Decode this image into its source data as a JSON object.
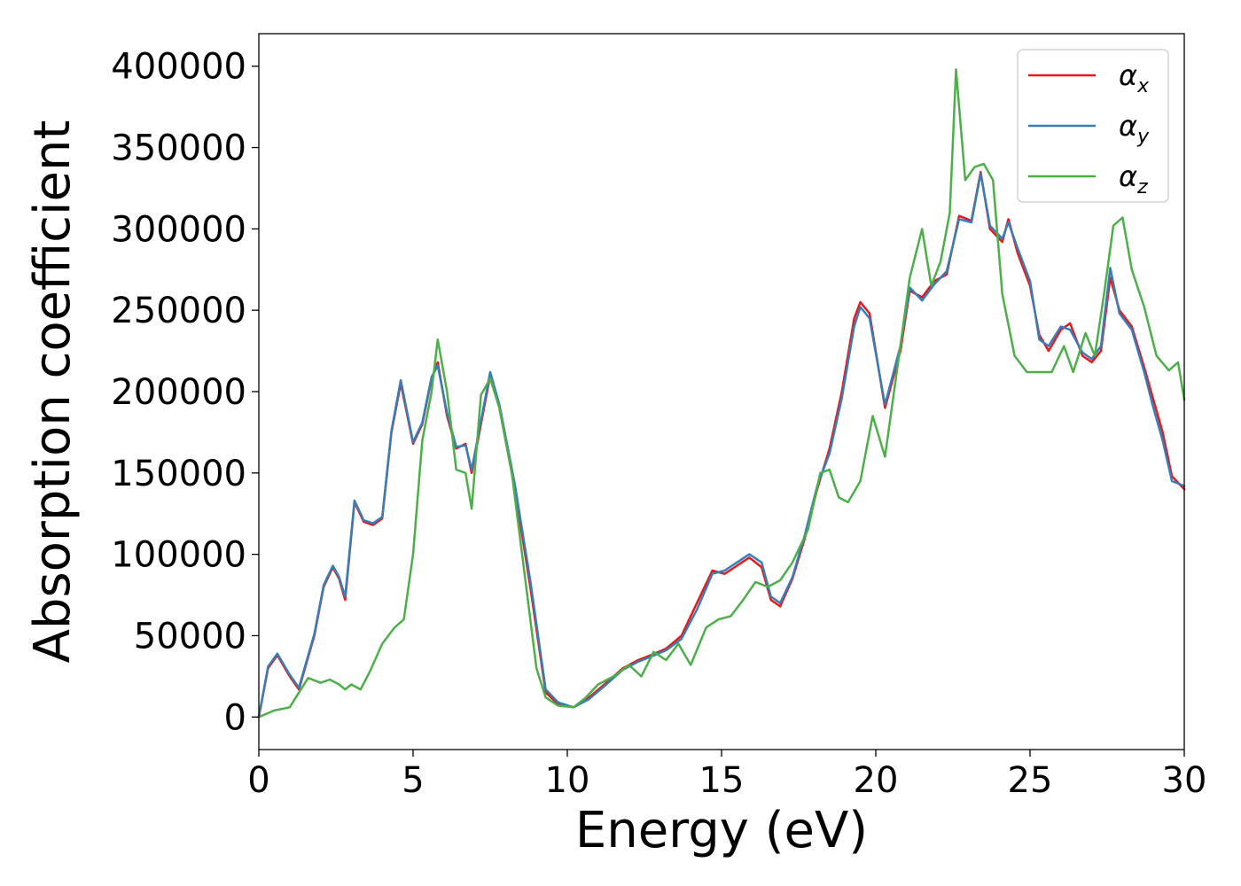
{
  "chart_data": {
    "type": "line",
    "xlabel": "Energy (eV)",
    "ylabel": "Absorption coefficient",
    "xlim": [
      0,
      30
    ],
    "ylim": [
      -20000,
      420000
    ],
    "x_ticks": [
      0,
      5,
      10,
      15,
      20,
      25,
      30
    ],
    "y_ticks": [
      0,
      50000,
      100000,
      150000,
      200000,
      250000,
      300000,
      350000,
      400000
    ],
    "grid": false,
    "legend_position": "top-right",
    "series": [
      {
        "name": "αx",
        "legend_base": "α",
        "legend_sub": "x",
        "color": "#e41a1c",
        "x": [
          0,
          0.3,
          0.6,
          1.0,
          1.3,
          1.8,
          2.1,
          2.4,
          2.6,
          2.8,
          3.1,
          3.4,
          3.7,
          4.0,
          4.3,
          4.6,
          5.0,
          5.3,
          5.6,
          5.8,
          6.1,
          6.4,
          6.7,
          6.9,
          7.2,
          7.5,
          7.8,
          8.3,
          8.8,
          9.3,
          9.7,
          10.2,
          10.7,
          11.2,
          11.8,
          12.3,
          12.7,
          13.2,
          13.7,
          14.2,
          14.7,
          15.1,
          15.5,
          15.9,
          16.3,
          16.6,
          16.9,
          17.3,
          17.7,
          18.1,
          18.5,
          18.9,
          19.3,
          19.5,
          19.8,
          20.3,
          20.8,
          21.1,
          21.5,
          21.9,
          22.3,
          22.7,
          23.1,
          23.4,
          23.7,
          24.1,
          24.3,
          24.6,
          25.0,
          25.3,
          25.6,
          26.0,
          26.3,
          26.7,
          27.0,
          27.3,
          27.6,
          27.9,
          28.3,
          28.7,
          29.0,
          29.3,
          29.6,
          30.0
        ],
        "y": [
          0,
          30000,
          38000,
          25000,
          17000,
          50000,
          80000,
          92000,
          85000,
          72000,
          132000,
          120000,
          118000,
          122000,
          175000,
          205000,
          168000,
          180000,
          208000,
          218000,
          185000,
          165000,
          168000,
          150000,
          180000,
          210000,
          190000,
          140000,
          80000,
          15000,
          8000,
          6000,
          12000,
          20000,
          30000,
          35000,
          38000,
          42000,
          50000,
          70000,
          90000,
          88000,
          93000,
          98000,
          92000,
          72000,
          68000,
          85000,
          110000,
          140000,
          165000,
          200000,
          245000,
          255000,
          248000,
          190000,
          225000,
          262000,
          258000,
          268000,
          272000,
          308000,
          305000,
          335000,
          300000,
          292000,
          306000,
          285000,
          265000,
          235000,
          225000,
          238000,
          242000,
          222000,
          218000,
          225000,
          270000,
          250000,
          240000,
          215000,
          195000,
          175000,
          148000,
          140000
        ]
      },
      {
        "name": "αy",
        "legend_base": "α",
        "legend_sub": "y",
        "color": "#377eb8",
        "x": [
          0,
          0.3,
          0.6,
          1.0,
          1.3,
          1.8,
          2.1,
          2.4,
          2.6,
          2.8,
          3.1,
          3.4,
          3.7,
          4.0,
          4.3,
          4.6,
          5.0,
          5.3,
          5.6,
          5.8,
          6.1,
          6.4,
          6.7,
          6.9,
          7.2,
          7.5,
          7.8,
          8.3,
          8.8,
          9.3,
          9.7,
          10.2,
          10.7,
          11.2,
          11.8,
          12.3,
          12.7,
          13.2,
          13.7,
          14.2,
          14.7,
          15.1,
          15.5,
          15.9,
          16.3,
          16.6,
          16.9,
          17.3,
          17.7,
          18.1,
          18.5,
          18.9,
          19.3,
          19.5,
          19.8,
          20.3,
          20.8,
          21.1,
          21.5,
          21.9,
          22.3,
          22.7,
          23.1,
          23.4,
          23.7,
          24.1,
          24.3,
          24.6,
          25.0,
          25.3,
          25.6,
          26.0,
          26.3,
          26.7,
          27.0,
          27.3,
          27.6,
          27.9,
          28.3,
          28.7,
          29.0,
          29.3,
          29.6,
          30.0
        ],
        "y": [
          0,
          31000,
          39000,
          26000,
          18000,
          51000,
          81000,
          93000,
          86000,
          74000,
          133000,
          121000,
          119000,
          123000,
          176000,
          207000,
          169000,
          181000,
          209000,
          216000,
          187000,
          166000,
          167000,
          152000,
          182000,
          212000,
          192000,
          143000,
          84000,
          17000,
          9000,
          6000,
          11000,
          19000,
          29000,
          34000,
          37000,
          41000,
          48000,
          66000,
          88000,
          90000,
          95000,
          100000,
          95000,
          74000,
          70000,
          86000,
          112000,
          142000,
          162000,
          196000,
          240000,
          252000,
          245000,
          192000,
          228000,
          264000,
          256000,
          266000,
          274000,
          306000,
          304000,
          334000,
          302000,
          294000,
          304000,
          288000,
          268000,
          232000,
          228000,
          240000,
          238000,
          224000,
          220000,
          228000,
          276000,
          248000,
          238000,
          212000,
          190000,
          170000,
          145000,
          142000
        ]
      },
      {
        "name": "αz",
        "legend_base": "α",
        "legend_sub": "z",
        "color": "#4daf4a",
        "x": [
          0,
          0.5,
          1.0,
          1.3,
          1.6,
          2.0,
          2.3,
          2.6,
          2.8,
          3.0,
          3.3,
          3.6,
          4.0,
          4.4,
          4.7,
          5.0,
          5.3,
          5.6,
          5.8,
          6.1,
          6.4,
          6.7,
          6.9,
          7.2,
          7.5,
          7.8,
          8.2,
          8.6,
          9.0,
          9.3,
          9.7,
          10.2,
          10.6,
          11.0,
          11.5,
          12.0,
          12.4,
          12.8,
          13.2,
          13.6,
          14.0,
          14.5,
          14.9,
          15.3,
          15.7,
          16.1,
          16.5,
          16.9,
          17.3,
          17.8,
          18.2,
          18.5,
          18.8,
          19.1,
          19.5,
          19.9,
          20.3,
          20.7,
          21.1,
          21.5,
          21.8,
          22.1,
          22.4,
          22.6,
          22.9,
          23.2,
          23.5,
          23.8,
          24.1,
          24.5,
          24.9,
          25.3,
          25.7,
          26.1,
          26.4,
          26.8,
          27.1,
          27.4,
          27.7,
          28.0,
          28.3,
          28.7,
          29.1,
          29.5,
          29.8,
          30.0
        ],
        "y": [
          0,
          4000,
          6000,
          15000,
          24000,
          21000,
          23000,
          20000,
          17000,
          20000,
          17000,
          28000,
          45000,
          55000,
          60000,
          100000,
          170000,
          200000,
          232000,
          200000,
          152000,
          150000,
          128000,
          198000,
          208000,
          190000,
          150000,
          90000,
          30000,
          12000,
          7000,
          6000,
          12000,
          20000,
          25000,
          32000,
          25000,
          40000,
          35000,
          45000,
          32000,
          55000,
          60000,
          62000,
          72000,
          83000,
          80000,
          84000,
          95000,
          115000,
          150000,
          152000,
          135000,
          132000,
          145000,
          185000,
          160000,
          215000,
          270000,
          300000,
          265000,
          280000,
          310000,
          398000,
          330000,
          338000,
          340000,
          330000,
          260000,
          222000,
          212000,
          212000,
          212000,
          228000,
          212000,
          236000,
          222000,
          260000,
          302000,
          307000,
          275000,
          252000,
          222000,
          213000,
          218000,
          195000
        ]
      }
    ]
  }
}
